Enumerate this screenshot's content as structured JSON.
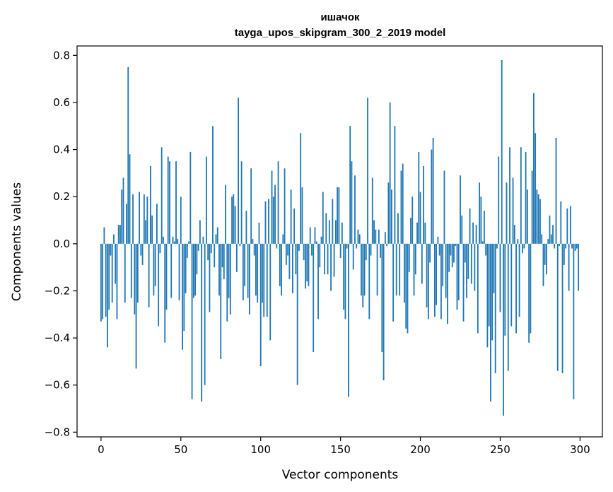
{
  "chart_data": {
    "type": "bar",
    "title_line1": "ишачок",
    "title_line2": "tayga_upos_skipgram_300_2_2019 model",
    "xlabel": "Vector components",
    "ylabel": "Components values",
    "xlim": [
      -15,
      314
    ],
    "ylim": [
      -0.82,
      0.84
    ],
    "xticks": [
      0,
      50,
      100,
      150,
      200,
      250,
      300
    ],
    "xtick_labels": [
      "0",
      "50",
      "100",
      "150",
      "200",
      "250",
      "300"
    ],
    "yticks": [
      -0.8,
      -0.6,
      -0.4,
      -0.2,
      0.0,
      0.2,
      0.4,
      0.6,
      0.8
    ],
    "ytick_labels": [
      "−0.8",
      "−0.6",
      "−0.4",
      "−0.2",
      "0.0",
      "0.2",
      "0.4",
      "0.6",
      "0.8"
    ],
    "bar_color": "#1f77b4",
    "values": [
      -0.33,
      -0.32,
      0.07,
      -0.31,
      -0.44,
      -0.28,
      -0.05,
      -0.25,
      0.04,
      -0.17,
      -0.32,
      0.08,
      0.08,
      0.23,
      0.28,
      -0.25,
      0.17,
      0.75,
      0.38,
      -0.23,
      0.21,
      -0.3,
      -0.53,
      -0.25,
      0.22,
      -0.05,
      -0.09,
      0.21,
      0.1,
      0.2,
      -0.27,
      0.33,
      0.12,
      -0.22,
      -0.18,
      0.17,
      -0.35,
      -0.04,
      0.41,
      0.03,
      -0.42,
      -0.28,
      0.37,
      0.35,
      -0.23,
      0.03,
      0.01,
      0.35,
      0.02,
      -0.24,
      0.2,
      -0.45,
      -0.37,
      -0.21,
      -0.06,
      0.01,
      0.39,
      -0.66,
      -0.23,
      -0.22,
      -0.13,
      -0.03,
      0.1,
      -0.67,
      0.03,
      -0.6,
      0.37,
      -0.07,
      -0.29,
      -0.04,
      0.5,
      -0.1,
      0.04,
      0.07,
      -0.22,
      -0.49,
      -0.1,
      -0.15,
      0.25,
      -0.33,
      -0.23,
      -0.3,
      0.2,
      0.21,
      0.16,
      -0.12,
      0.62,
      -0.01,
      0.35,
      -0.24,
      -0.18,
      0.14,
      -0.23,
      -0.3,
      0.32,
      0.02,
      -0.05,
      -0.22,
      -0.25,
      0.09,
      -0.52,
      -0.25,
      -0.31,
      0.18,
      -0.31,
      0.19,
      -0.41,
      0.31,
      0.2,
      0.25,
      -0.02,
      0.35,
      -0.18,
      -0.22,
      0.04,
      0.32,
      -0.09,
      -0.05,
      -0.15,
      0.23,
      -0.21,
      0.15,
      -0.13,
      -0.6,
      -0.03,
      0.47,
      0.24,
      -0.07,
      -0.19,
      -0.16,
      -0.18,
      0.07,
      -0.05,
      -0.46,
      0.07,
      0.01,
      -0.32,
      -0.1,
      0.03,
      0.22,
      -0.13,
      0.13,
      -0.13,
      0.1,
      -0.2,
      0.19,
      -0.14,
      0.1,
      0.24,
      0.24,
      -0.06,
      0.09,
      -0.28,
      -0.32,
      -0.02,
      -0.65,
      0.5,
      0.35,
      -0.11,
      0.29,
      -0.02,
      0.06,
      0.04,
      -0.22,
      -0.27,
      -0.22,
      -0.07,
      0.62,
      -0.32,
      -0.05,
      0.28,
      0.1,
      0.06,
      -0.22,
      0.06,
      -0.06,
      -0.46,
      -0.58,
      0.05,
      -0.01,
      0.26,
      0.6,
      0.23,
      -0.33,
      0.5,
      -0.22,
      0.13,
      -0.22,
      0.31,
      0.34,
      -0.25,
      -0.36,
      -0.38,
      -0.12,
      0.11,
      0.2,
      -0.22,
      -0.13,
      0.09,
      0.39,
      0.22,
      -0.17,
      0.33,
      0.09,
      -0.27,
      -0.32,
      -0.08,
      0.4,
      0.45,
      -0.31,
      -0.26,
      0.03,
      -0.05,
      -0.32,
      -0.18,
      0.31,
      -0.23,
      -0.34,
      -0.12,
      -0.05,
      -0.1,
      -0.08,
      -0.01,
      -0.28,
      -0.24,
      0.29,
      0.12,
      -0.33,
      -0.08,
      -0.23,
      -0.15,
      0.15,
      -0.17,
      0.09,
      -0.2,
      0.08,
      -0.38,
      0.26,
      0.2,
      0.01,
      0.14,
      -0.05,
      -0.44,
      -0.35,
      -0.67,
      -0.41,
      -0.21,
      -0.55,
      -0.02,
      0.37,
      -0.29,
      0.78,
      -0.73,
      -0.39,
      0.26,
      -0.54,
      0.41,
      -0.35,
      0.28,
      0.08,
      -0.38,
      0.02,
      -0.31,
      0.41,
      -0.04,
      -0.02,
      0.39,
      0.23,
      -0.42,
      -0.38,
      0.31,
      0.64,
      0.47,
      0.23,
      0.21,
      0.19,
      0.04,
      -0.18,
      -0.09,
      -0.13,
      0.02,
      0.12,
      0.04,
      0.08,
      -0.02,
      0.45,
      -0.54,
      -0.01,
      0.18,
      -0.55,
      -0.09,
      -0.02,
      0.15,
      -0.2,
      0.16,
      -0.02,
      -0.66,
      -0.03,
      -0.02,
      -0.2
    ]
  }
}
